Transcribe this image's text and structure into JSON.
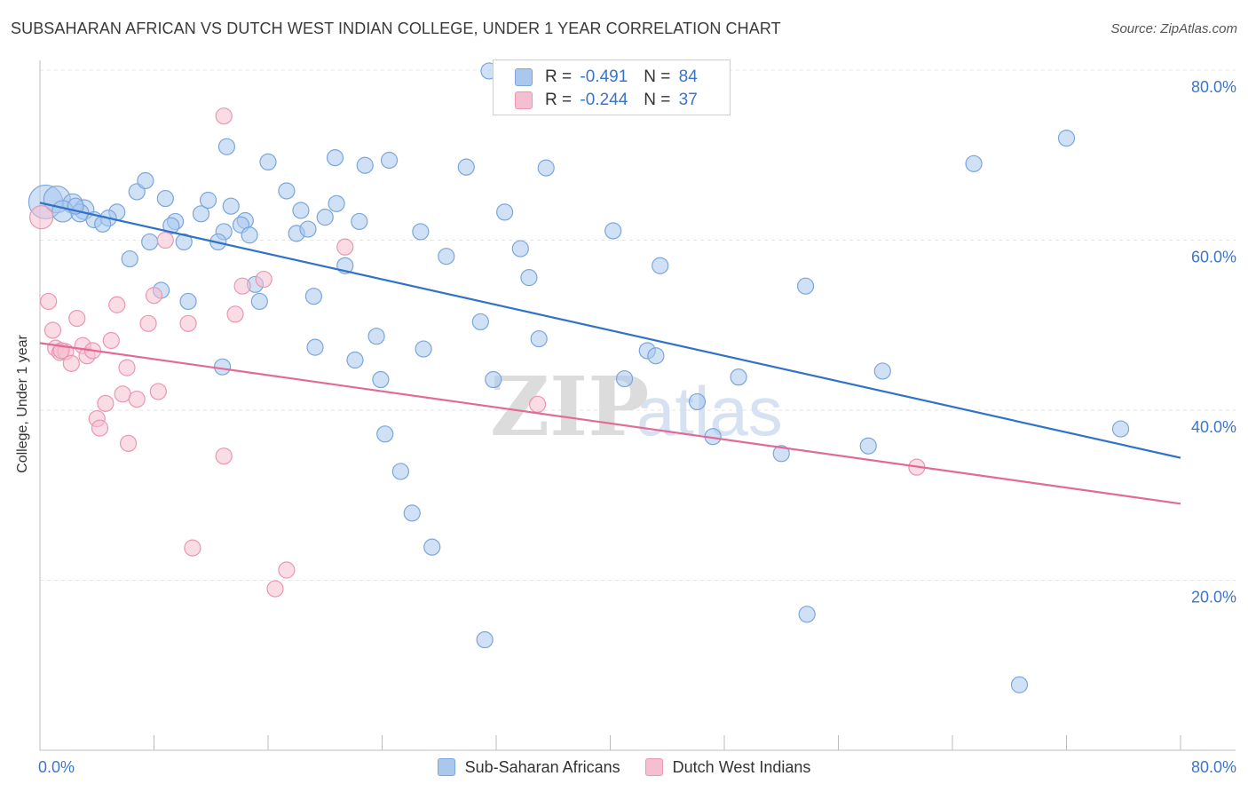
{
  "title": "SUBSAHARAN AFRICAN VS DUTCH WEST INDIAN COLLEGE, UNDER 1 YEAR CORRELATION CHART",
  "source": "Source: ZipAtlas.com",
  "watermark": {
    "zip": "ZIP",
    "atlas": "atlas"
  },
  "legend": {
    "r_label": "R =",
    "n_label": "N =",
    "rows": [
      {
        "r": "-0.491",
        "n": "84"
      },
      {
        "r": "-0.244",
        "n": "37"
      }
    ]
  },
  "colors": {
    "blue_fill": "#aac8ee",
    "blue_stroke": "#7aa6dc",
    "blue_line": "#2f72c8",
    "pink_fill": "#f6bfd0",
    "pink_stroke": "#eb96b2",
    "pink_line": "#e26a96",
    "axis_text": "#3f75c8",
    "grid": "#e6e6e6"
  },
  "chart_data": {
    "type": "scatter",
    "title": "SUBSAHARAN AFRICAN VS DUTCH WEST INDIAN COLLEGE, UNDER 1 YEAR CORRELATION CHART",
    "ylabel": "College, Under 1 year",
    "xlabel": "",
    "xlim": [
      0,
      80
    ],
    "ylim": [
      0,
      80
    ],
    "x_ticks": [
      "0.0%",
      "80.0%"
    ],
    "y_ticks": [
      "20.0%",
      "40.0%",
      "60.0%",
      "80.0%"
    ],
    "y_tick_values": [
      20,
      40,
      60,
      80
    ],
    "grid": true,
    "legend_position": "top-center",
    "series": [
      {
        "name": "Sub-Saharan Africans",
        "r": -0.491,
        "n": 84,
        "trend": [
          [
            0,
            64.4
          ],
          [
            80,
            34.4
          ]
        ],
        "points": [
          [
            0.4,
            64.5
          ],
          [
            1.2,
            64.8
          ],
          [
            2.3,
            64.3
          ],
          [
            1.6,
            63.4
          ],
          [
            3.1,
            63.6
          ],
          [
            2.8,
            63.2
          ],
          [
            3.8,
            62.4
          ],
          [
            5.4,
            63.3
          ],
          [
            4.8,
            62.6
          ],
          [
            4.4,
            61.9
          ],
          [
            6.8,
            65.7
          ],
          [
            7.4,
            67.0
          ],
          [
            8.8,
            64.9
          ],
          [
            9.5,
            62.2
          ],
          [
            11.3,
            63.1
          ],
          [
            11.8,
            64.7
          ],
          [
            13.4,
            64.0
          ],
          [
            14.4,
            62.3
          ],
          [
            14.1,
            61.8
          ],
          [
            12.9,
            61.0
          ],
          [
            10.1,
            59.8
          ],
          [
            7.7,
            59.8
          ],
          [
            6.3,
            57.8
          ],
          [
            8.5,
            54.1
          ],
          [
            10.4,
            52.8
          ],
          [
            12.5,
            59.8
          ],
          [
            14.7,
            60.6
          ],
          [
            16.0,
            69.2
          ],
          [
            17.3,
            65.8
          ],
          [
            18.0,
            60.8
          ],
          [
            18.3,
            63.5
          ],
          [
            18.8,
            61.3
          ],
          [
            19.2,
            53.4
          ],
          [
            20.0,
            62.7
          ],
          [
            20.8,
            64.3
          ],
          [
            20.7,
            69.7
          ],
          [
            22.4,
            62.2
          ],
          [
            22.8,
            68.8
          ],
          [
            21.4,
            57.0
          ],
          [
            22.1,
            45.9
          ],
          [
            24.5,
            69.4
          ],
          [
            23.6,
            48.7
          ],
          [
            24.2,
            37.2
          ],
          [
            25.3,
            32.8
          ],
          [
            23.9,
            43.6
          ],
          [
            26.1,
            27.9
          ],
          [
            26.9,
            47.2
          ],
          [
            27.5,
            23.9
          ],
          [
            28.5,
            58.1
          ],
          [
            29.9,
            68.6
          ],
          [
            30.9,
            50.4
          ],
          [
            31.8,
            43.6
          ],
          [
            31.2,
            13.0
          ],
          [
            32.6,
            63.3
          ],
          [
            34.3,
            55.6
          ],
          [
            33.7,
            59.0
          ],
          [
            35.0,
            48.4
          ],
          [
            35.5,
            68.5
          ],
          [
            31.5,
            79.9
          ],
          [
            40.2,
            61.1
          ],
          [
            41.0,
            43.7
          ],
          [
            42.6,
            47.0
          ],
          [
            43.2,
            46.4
          ],
          [
            43.5,
            57.0
          ],
          [
            46.1,
            41.0
          ],
          [
            47.2,
            36.9
          ],
          [
            49.0,
            43.9
          ],
          [
            52.0,
            34.9
          ],
          [
            53.7,
            54.6
          ],
          [
            53.8,
            16.0
          ],
          [
            58.1,
            35.8
          ],
          [
            59.1,
            44.6
          ],
          [
            65.5,
            69.0
          ],
          [
            68.7,
            7.7
          ],
          [
            72.0,
            72.0
          ],
          [
            75.8,
            37.8
          ],
          [
            2.5,
            64.0
          ],
          [
            9.2,
            61.7
          ],
          [
            15.1,
            54.8
          ],
          [
            15.4,
            52.8
          ],
          [
            12.8,
            45.1
          ],
          [
            19.3,
            47.4
          ],
          [
            26.7,
            61.0
          ],
          [
            13.1,
            71.0
          ]
        ],
        "sizes": [
          38,
          30,
          22,
          24,
          22,
          20,
          18,
          18,
          18,
          18,
          18,
          18,
          18,
          18,
          18,
          18,
          18,
          18,
          18,
          18,
          18,
          18,
          18,
          18,
          18,
          18,
          18,
          18,
          18,
          18,
          18,
          18,
          18,
          18,
          18,
          18,
          18,
          18,
          18,
          18,
          18,
          18,
          18,
          18,
          18,
          18,
          18,
          18,
          18,
          18,
          18,
          18,
          18,
          18,
          18,
          18,
          18,
          18,
          18,
          18,
          18,
          18,
          18,
          18,
          18,
          18,
          18,
          18,
          18,
          18,
          18,
          18,
          18,
          18,
          18,
          18,
          18,
          18,
          18,
          18,
          18,
          18,
          18,
          18
        ]
      },
      {
        "name": "Dutch West Indians",
        "r": -0.244,
        "n": 37,
        "trend": [
          [
            0,
            47.9
          ],
          [
            80,
            29.0
          ]
        ],
        "points": [
          [
            0.1,
            62.7
          ],
          [
            0.6,
            52.8
          ],
          [
            0.9,
            49.4
          ],
          [
            1.1,
            47.3
          ],
          [
            1.4,
            46.8
          ],
          [
            1.8,
            46.9
          ],
          [
            2.2,
            45.5
          ],
          [
            2.6,
            50.8
          ],
          [
            3.0,
            47.6
          ],
          [
            3.3,
            46.4
          ],
          [
            3.7,
            47.0
          ],
          [
            4.0,
            39.0
          ],
          [
            4.2,
            37.9
          ],
          [
            4.6,
            40.8
          ],
          [
            5.0,
            48.2
          ],
          [
            5.4,
            52.4
          ],
          [
            5.8,
            41.9
          ],
          [
            6.1,
            45.0
          ],
          [
            6.2,
            36.1
          ],
          [
            6.8,
            41.3
          ],
          [
            7.6,
            50.2
          ],
          [
            8.0,
            53.5
          ],
          [
            8.3,
            42.2
          ],
          [
            8.8,
            60.0
          ],
          [
            10.4,
            50.2
          ],
          [
            10.7,
            23.8
          ],
          [
            12.9,
            74.6
          ],
          [
            12.9,
            34.6
          ],
          [
            13.7,
            51.3
          ],
          [
            14.2,
            54.6
          ],
          [
            15.7,
            55.4
          ],
          [
            16.5,
            19.0
          ],
          [
            17.3,
            21.2
          ],
          [
            21.4,
            59.2
          ],
          [
            34.9,
            40.7
          ],
          [
            61.5,
            33.3
          ],
          [
            1.5,
            47.0
          ]
        ],
        "sizes": [
          26,
          18,
          18,
          18,
          18,
          18,
          18,
          18,
          18,
          18,
          18,
          18,
          18,
          18,
          18,
          18,
          18,
          18,
          18,
          18,
          18,
          18,
          18,
          18,
          18,
          18,
          18,
          18,
          18,
          18,
          18,
          18,
          18,
          18,
          18,
          18,
          18
        ]
      }
    ]
  }
}
